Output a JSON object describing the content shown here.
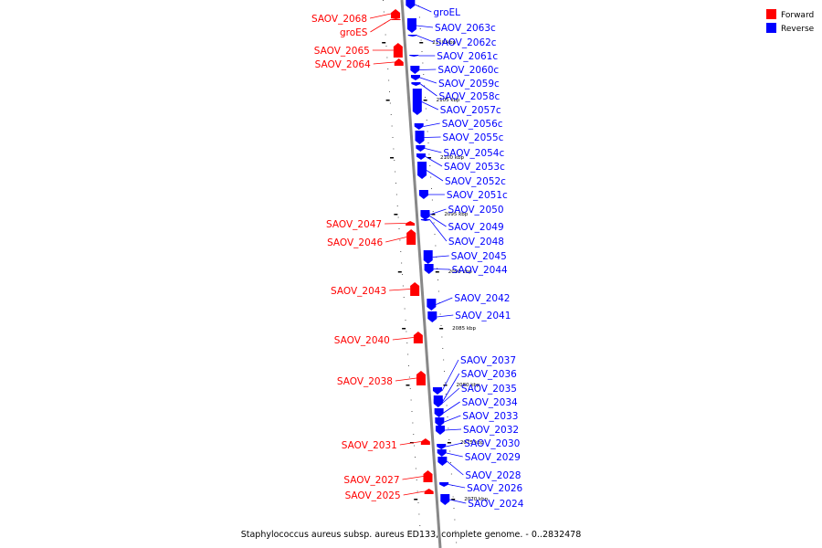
{
  "caption": "Staphylococcus aureus subsp. aureus ED133, complete genome. - 0..2832478",
  "legend": [
    {
      "label": "Forward",
      "color": "#ff0000"
    },
    {
      "label": "Reverse",
      "color": "#0000ff"
    }
  ],
  "colors": {
    "forward": "#ff0000",
    "reverse": "#0000ff",
    "backbone": "#888888"
  },
  "kbp_marks": [
    {
      "label": "2110 kbp",
      "pos": 46
    },
    {
      "label": "2105 kbp",
      "pos": 109
    },
    {
      "label": "2100 kbp",
      "pos": 172
    },
    {
      "label": "2095 kbp",
      "pos": 234
    },
    {
      "label": "2090 kbp",
      "pos": 297
    },
    {
      "label": "2085 kbp",
      "pos": 359
    },
    {
      "label": "2080 kbp",
      "pos": 421
    },
    {
      "label": "2075 kbp",
      "pos": 484
    },
    {
      "label": "2070 kbp",
      "pos": 546
    }
  ],
  "genes": [
    {
      "name": "SAOV_2068",
      "strand": "forward",
      "start": 10,
      "end": 20,
      "label_pos": 20
    },
    {
      "name": "groES",
      "strand": "forward",
      "start": 20,
      "end": 22,
      "label_pos": 35
    },
    {
      "name": "SAOV_2065",
      "strand": "forward",
      "start": 47,
      "end": 63,
      "label_pos": 55
    },
    {
      "name": "SAOV_2064",
      "strand": "forward",
      "start": 64,
      "end": 72,
      "label_pos": 70
    },
    {
      "name": "groEL",
      "strand": "reverse",
      "start": 0,
      "end": 10,
      "label_pos": 13
    },
    {
      "name": "SAOV_2063c",
      "strand": "reverse",
      "start": 20,
      "end": 36,
      "label_pos": 30
    },
    {
      "name": "SAOV_2062c",
      "strand": "reverse",
      "start": 38,
      "end": 40,
      "label_pos": 46
    },
    {
      "name": "SAOV_2061c",
      "strand": "reverse",
      "start": 60,
      "end": 62,
      "label_pos": 61
    },
    {
      "name": "SAOV_2060c",
      "strand": "reverse",
      "start": 72,
      "end": 81,
      "label_pos": 76
    },
    {
      "name": "SAOV_2059c",
      "strand": "reverse",
      "start": 82,
      "end": 88,
      "label_pos": 91
    },
    {
      "name": "SAOV_2058c",
      "strand": "reverse",
      "start": 90,
      "end": 94,
      "label_pos": 105
    },
    {
      "name": "SAOV_2057c",
      "strand": "reverse",
      "start": 97,
      "end": 126,
      "label_pos": 120
    },
    {
      "name": "SAOV_2056c",
      "strand": "reverse",
      "start": 135,
      "end": 142,
      "label_pos": 135
    },
    {
      "name": "SAOV_2055c",
      "strand": "reverse",
      "start": 143,
      "end": 158,
      "label_pos": 150
    },
    {
      "name": "SAOV_2054c",
      "strand": "reverse",
      "start": 159,
      "end": 166,
      "label_pos": 167
    },
    {
      "name": "SAOV_2053c",
      "strand": "reverse",
      "start": 168,
      "end": 175,
      "label_pos": 182
    },
    {
      "name": "SAOV_2052c",
      "strand": "reverse",
      "start": 177,
      "end": 196,
      "label_pos": 198
    },
    {
      "name": "SAOV_2051c",
      "strand": "reverse",
      "start": 208,
      "end": 218,
      "label_pos": 213
    },
    {
      "name": "SAOV_2050",
      "strand": "reverse",
      "start": 230,
      "end": 240,
      "label_pos": 229
    },
    {
      "name": "SAOV_2049",
      "strand": "reverse",
      "start": 232,
      "end": 241,
      "label_pos": 248
    },
    {
      "name": "SAOV_2048",
      "strand": "reverse",
      "start": 240,
      "end": 242,
      "label_pos": 264
    },
    {
      "name": "SAOV_2047",
      "strand": "forward",
      "start": 242,
      "end": 247,
      "label_pos": 245
    },
    {
      "name": "SAOV_2046",
      "strand": "forward",
      "start": 251,
      "end": 268,
      "label_pos": 265
    },
    {
      "name": "SAOV_2045",
      "strand": "reverse",
      "start": 274,
      "end": 289,
      "label_pos": 280
    },
    {
      "name": "SAOV_2044",
      "strand": "reverse",
      "start": 289,
      "end": 300,
      "label_pos": 295
    },
    {
      "name": "SAOV_2043",
      "strand": "forward",
      "start": 309,
      "end": 324,
      "label_pos": 318
    },
    {
      "name": "SAOV_2042",
      "strand": "reverse",
      "start": 327,
      "end": 340,
      "label_pos": 326
    },
    {
      "name": "SAOV_2041",
      "strand": "reverse",
      "start": 341,
      "end": 353,
      "label_pos": 345
    },
    {
      "name": "SAOV_2040",
      "strand": "forward",
      "start": 363,
      "end": 376,
      "label_pos": 372
    },
    {
      "name": "SAOV_2038",
      "strand": "forward",
      "start": 406,
      "end": 422,
      "label_pos": 417
    },
    {
      "name": "SAOV_2037",
      "strand": "reverse",
      "start": 424,
      "end": 432,
      "label_pos": 394
    },
    {
      "name": "SAOV_2036",
      "strand": "reverse",
      "start": 433,
      "end": 446,
      "label_pos": 409
    },
    {
      "name": "SAOV_2035",
      "strand": "reverse",
      "start": 437,
      "end": 445,
      "label_pos": 425
    },
    {
      "name": "SAOV_2034",
      "strand": "reverse",
      "start": 447,
      "end": 457,
      "label_pos": 440
    },
    {
      "name": "SAOV_2033",
      "strand": "reverse",
      "start": 457,
      "end": 467,
      "label_pos": 455
    },
    {
      "name": "SAOV_2032",
      "strand": "reverse",
      "start": 466,
      "end": 476,
      "label_pos": 470
    },
    {
      "name": "SAOV_2031",
      "strand": "forward",
      "start": 480,
      "end": 487,
      "label_pos": 487
    },
    {
      "name": "SAOV_2030",
      "strand": "reverse",
      "start": 486,
      "end": 492,
      "label_pos": 485
    },
    {
      "name": "SAOV_2029",
      "strand": "reverse",
      "start": 492,
      "end": 500,
      "label_pos": 500
    },
    {
      "name": "SAOV_2028",
      "strand": "reverse",
      "start": 500,
      "end": 510,
      "label_pos": 520
    },
    {
      "name": "SAOV_2027",
      "strand": "forward",
      "start": 515,
      "end": 528,
      "label_pos": 525
    },
    {
      "name": "SAOV_2026",
      "strand": "reverse",
      "start": 528,
      "end": 533,
      "label_pos": 534
    },
    {
      "name": "SAOV_2025",
      "strand": "forward",
      "start": 535,
      "end": 541,
      "label_pos": 542
    },
    {
      "name": "SAOV_2024",
      "strand": "reverse",
      "start": 541,
      "end": 553,
      "label_pos": 551
    }
  ]
}
